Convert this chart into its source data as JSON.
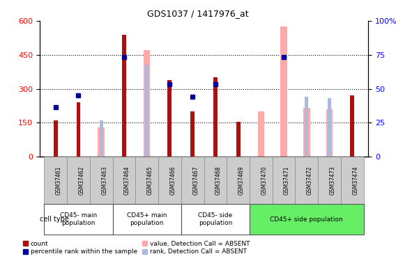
{
  "title": "GDS1037 / 1417976_at",
  "samples": [
    "GSM37461",
    "GSM37462",
    "GSM37463",
    "GSM37464",
    "GSM37465",
    "GSM37466",
    "GSM37467",
    "GSM37468",
    "GSM37469",
    "GSM37470",
    "GSM37471",
    "GSM37472",
    "GSM37473",
    "GSM37474"
  ],
  "count_values": [
    160,
    240,
    null,
    540,
    null,
    340,
    200,
    350,
    155,
    null,
    null,
    null,
    null,
    270
  ],
  "rank_values": [
    220,
    270,
    null,
    440,
    null,
    320,
    265,
    320,
    null,
    null,
    440,
    null,
    null,
    null
  ],
  "absent_value_values": [
    null,
    null,
    130,
    null,
    470,
    null,
    null,
    null,
    null,
    200,
    575,
    215,
    210,
    null
  ],
  "absent_rank_values": [
    null,
    null,
    160,
    null,
    405,
    null,
    null,
    null,
    null,
    null,
    null,
    265,
    260,
    null
  ],
  "count_color": "#AA1111",
  "rank_color": "#000099",
  "absent_value_color": "#FFAAAA",
  "absent_rank_color": "#AABBDD",
  "ylim_left": [
    0,
    600
  ],
  "ylim_right": [
    0,
    100
  ],
  "yticks_left": [
    0,
    150,
    300,
    450,
    600
  ],
  "yticks_right": [
    0,
    25,
    50,
    75,
    100
  ],
  "group_starts": [
    0,
    3,
    6,
    9
  ],
  "group_ends": [
    3,
    6,
    9,
    14
  ],
  "group_labels": [
    "CD45- main\npopulation",
    "CD45+ main\npopulation",
    "CD45- side\npopulation",
    "CD45+ side population"
  ],
  "group_colors": [
    "#ffffff",
    "#ffffff",
    "#ffffff",
    "#66EE66"
  ],
  "legend_items": [
    {
      "label": "count",
      "color": "#AA1111"
    },
    {
      "label": "percentile rank within the sample",
      "color": "#000099"
    },
    {
      "label": "value, Detection Call = ABSENT",
      "color": "#FFAAAA"
    },
    {
      "label": "rank, Detection Call = ABSENT",
      "color": "#AABBDD"
    }
  ],
  "bar_width": 0.18,
  "cell_type_label": "cell type",
  "sample_box_color": "#cccccc",
  "plot_bg": "#ffffff"
}
